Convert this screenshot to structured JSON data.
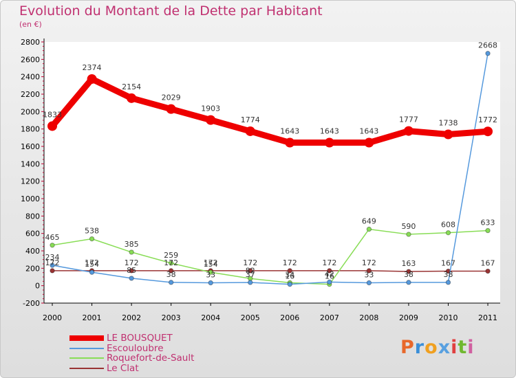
{
  "header": {
    "title": "Evolution du Montant de la Dette par Habitant",
    "subtitle": "(en €)"
  },
  "brand": {
    "letters": [
      "P",
      "r",
      "o",
      "x",
      "i",
      "t",
      "i"
    ],
    "colors": [
      "#e8682a",
      "#3a8fd8",
      "#f0a020",
      "#58a0e0",
      "#e04040",
      "#70b830",
      "#d060a0"
    ]
  },
  "chart_data": {
    "type": "line",
    "title": "Evolution du Montant de la Dette par Habitant",
    "subtitle": "(en €)",
    "xlabel": "",
    "ylabel": "",
    "categories": [
      "2000",
      "2001",
      "2002",
      "2003",
      "2004",
      "2005",
      "2006",
      "2007",
      "2008",
      "2009",
      "2010",
      "2011"
    ],
    "ylim": [
      -200,
      2800
    ],
    "yticks": [
      "-200",
      "0",
      "200",
      "400",
      "600",
      "800",
      "1000",
      "1200",
      "1400",
      "1600",
      "1800",
      "2000",
      "2200",
      "2400",
      "2600",
      "2800"
    ],
    "grid": false,
    "legend": "bottom-left",
    "series": [
      {
        "name": "LE BOUSQUET",
        "color": "#ee0000",
        "labels": [
          "1833",
          "2374",
          "2154",
          "2029",
          "1903",
          "1774",
          "1643",
          "1643",
          "1643",
          "1777",
          "1738",
          "1772"
        ],
        "values": [
          1833,
          2374,
          2154,
          2029,
          1903,
          1774,
          1643,
          1643,
          1643,
          1777,
          1738,
          1772
        ]
      },
      {
        "name": "Escouloubre",
        "color": "#5599dd",
        "labels": [
          "234",
          "154",
          "85",
          "38",
          "33",
          "37",
          "16",
          "42",
          "33",
          "38",
          "38",
          "2668"
        ],
        "values": [
          234,
          154,
          85,
          38,
          33,
          37,
          16,
          42,
          33,
          38,
          38,
          2668
        ]
      },
      {
        "name": "Roquefort-de-Sault",
        "color": "#88dd55",
        "labels": [
          "465",
          "538",
          "385",
          "259",
          "154",
          "82",
          "34",
          "16",
          "649",
          "590",
          "608",
          "633"
        ],
        "values": [
          465,
          538,
          385,
          259,
          154,
          82,
          34,
          16,
          649,
          590,
          608,
          633
        ]
      },
      {
        "name": "Le Clat",
        "color": "#993333",
        "labels": [
          "172",
          "172",
          "172",
          "172",
          "172",
          "172",
          "172",
          "172",
          "172",
          "163",
          "167",
          "167"
        ],
        "values": [
          172,
          172,
          172,
          172,
          172,
          172,
          172,
          172,
          172,
          163,
          167,
          167
        ]
      }
    ]
  }
}
